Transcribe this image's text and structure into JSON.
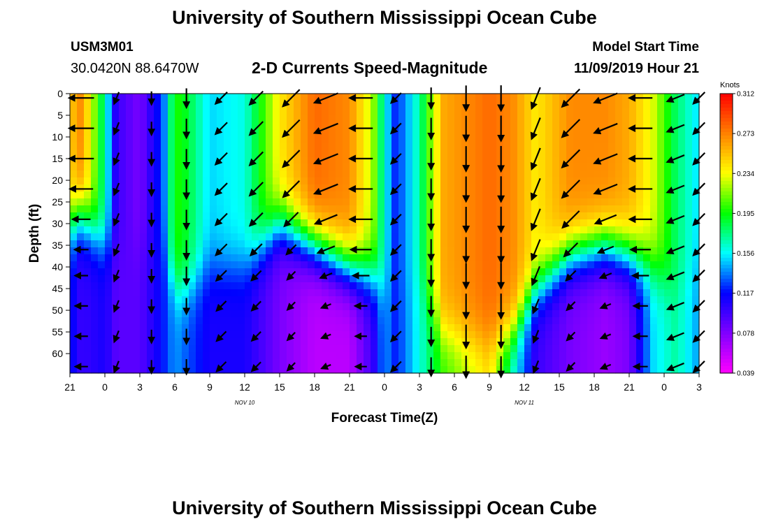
{
  "header": {
    "title": "University of Southern Mississippi Ocean Cube",
    "station_id": "USM3M01",
    "station_coords": "30.0420N 88.6470W",
    "plot_title": "2-D Currents Speed-Magnitude",
    "model_start_label": "Model Start Time",
    "model_start_value": "11/09/2019 Hour 21"
  },
  "footer": {
    "title": "University of Southern Mississippi Ocean Cube"
  },
  "chart_data": {
    "type": "heatmap",
    "title": "2-D Currents Speed-Magnitude",
    "xlabel": "Forecast Time(Z)",
    "ylabel": "Depth (ft)",
    "x_unit": "forecast hours since 11/09/2019 21Z",
    "xlim": [
      0,
      54
    ],
    "ylim": [
      0,
      64.5
    ],
    "x_ticks": [
      {
        "h": 0,
        "label": "21"
      },
      {
        "h": 3,
        "label": "0"
      },
      {
        "h": 6,
        "label": "3"
      },
      {
        "h": 9,
        "label": "6"
      },
      {
        "h": 12,
        "label": "9"
      },
      {
        "h": 15,
        "label": "12"
      },
      {
        "h": 18,
        "label": "15"
      },
      {
        "h": 21,
        "label": "18"
      },
      {
        "h": 24,
        "label": "21"
      },
      {
        "h": 27,
        "label": "0"
      },
      {
        "h": 30,
        "label": "3"
      },
      {
        "h": 33,
        "label": "6"
      },
      {
        "h": 36,
        "label": "9"
      },
      {
        "h": 39,
        "label": "12"
      },
      {
        "h": 42,
        "label": "15"
      },
      {
        "h": 45,
        "label": "18"
      },
      {
        "h": 48,
        "label": "21"
      },
      {
        "h": 51,
        "label": "0"
      },
      {
        "h": 54,
        "label": "3"
      }
    ],
    "date_labels": [
      {
        "h": 15,
        "label": "NOV 10"
      },
      {
        "h": 39,
        "label": "NOV 11"
      }
    ],
    "y_ticks": [
      0,
      5,
      10,
      15,
      20,
      25,
      30,
      35,
      40,
      45,
      50,
      55,
      60
    ],
    "colorbar": {
      "unit": "Knots",
      "ticks": [
        0.312,
        0.273,
        0.234,
        0.195,
        0.156,
        0.117,
        0.078,
        0.039
      ],
      "tick_labels": [
        "0.312",
        "0.273",
        "0.234",
        "0.195",
        "0.156",
        "0.117",
        "0.078",
        "0.039"
      ],
      "range": [
        0.039,
        0.312
      ],
      "colors": [
        "#ff00ff",
        "#8000ff",
        "#0000ff",
        "#00ffff",
        "#00ff00",
        "#ffff00",
        "#ff8000",
        "#ff0000"
      ]
    },
    "speed_profiles": [
      {
        "h": 0,
        "surface": 0.25,
        "bottom": 0.12,
        "transition_depth": 30
      },
      {
        "h": 1,
        "surface": 0.27,
        "bottom": 0.1,
        "transition_depth": 28
      },
      {
        "h": 3,
        "surface": 0.17,
        "bottom": 0.11,
        "transition_depth": 35
      },
      {
        "h": 4,
        "surface": 0.1,
        "bottom": 0.09,
        "transition_depth": 35
      },
      {
        "h": 6,
        "surface": 0.08,
        "bottom": 0.09,
        "transition_depth": 35
      },
      {
        "h": 8,
        "surface": 0.13,
        "bottom": 0.12,
        "transition_depth": 35
      },
      {
        "h": 9,
        "surface": 0.2,
        "bottom": 0.14,
        "transition_depth": 45
      },
      {
        "h": 10,
        "surface": 0.19,
        "bottom": 0.13,
        "transition_depth": 45
      },
      {
        "h": 12,
        "surface": 0.15,
        "bottom": 0.11,
        "transition_depth": 40
      },
      {
        "h": 15,
        "surface": 0.16,
        "bottom": 0.11,
        "transition_depth": 40
      },
      {
        "h": 18,
        "surface": 0.24,
        "bottom": 0.08,
        "transition_depth": 30
      },
      {
        "h": 21,
        "surface": 0.28,
        "bottom": 0.06,
        "transition_depth": 35
      },
      {
        "h": 24,
        "surface": 0.27,
        "bottom": 0.06,
        "transition_depth": 40
      },
      {
        "h": 26,
        "surface": 0.22,
        "bottom": 0.1,
        "transition_depth": 42
      },
      {
        "h": 27,
        "surface": 0.16,
        "bottom": 0.14,
        "transition_depth": 45
      },
      {
        "h": 28,
        "surface": 0.12,
        "bottom": 0.12,
        "transition_depth": 45
      },
      {
        "h": 30,
        "surface": 0.17,
        "bottom": 0.16,
        "transition_depth": 45
      },
      {
        "h": 32,
        "surface": 0.26,
        "bottom": 0.2,
        "transition_depth": 55
      },
      {
        "h": 36,
        "surface": 0.28,
        "bottom": 0.24,
        "transition_depth": 58
      },
      {
        "h": 38,
        "surface": 0.27,
        "bottom": 0.16,
        "transition_depth": 55
      },
      {
        "h": 40,
        "surface": 0.24,
        "bottom": 0.1,
        "transition_depth": 45
      },
      {
        "h": 43,
        "surface": 0.27,
        "bottom": 0.08,
        "transition_depth": 37
      },
      {
        "h": 46,
        "surface": 0.27,
        "bottom": 0.07,
        "transition_depth": 35
      },
      {
        "h": 48,
        "surface": 0.26,
        "bottom": 0.08,
        "transition_depth": 37
      },
      {
        "h": 50,
        "surface": 0.23,
        "bottom": 0.15,
        "transition_depth": 40
      },
      {
        "h": 52,
        "surface": 0.18,
        "bottom": 0.17,
        "transition_depth": 45
      },
      {
        "h": 54,
        "surface": 0.15,
        "bottom": 0.14,
        "transition_depth": 40
      }
    ],
    "vector_depths": [
      1,
      8,
      15,
      22,
      29,
      36,
      42,
      49,
      56,
      63
    ],
    "vector_columns": [
      {
        "h": 1,
        "dir": "W"
      },
      {
        "h": 4,
        "dir": "SSW"
      },
      {
        "h": 7,
        "dir": "S"
      },
      {
        "h": 10,
        "dir": "S"
      },
      {
        "h": 13,
        "dir": "SW"
      },
      {
        "h": 16,
        "dir": "SW"
      },
      {
        "h": 19,
        "dir": "SW"
      },
      {
        "h": 22,
        "dir": "WSW"
      },
      {
        "h": 25,
        "dir": "W"
      },
      {
        "h": 28,
        "dir": "SW"
      },
      {
        "h": 31,
        "dir": "S"
      },
      {
        "h": 34,
        "dir": "S"
      },
      {
        "h": 37,
        "dir": "S"
      },
      {
        "h": 40,
        "dir": "SSW"
      },
      {
        "h": 43,
        "dir": "SW"
      },
      {
        "h": 46,
        "dir": "WSW"
      },
      {
        "h": 49,
        "dir": "W"
      },
      {
        "h": 52,
        "dir": "WSW"
      },
      {
        "h": 54,
        "dir": "SW"
      }
    ]
  }
}
